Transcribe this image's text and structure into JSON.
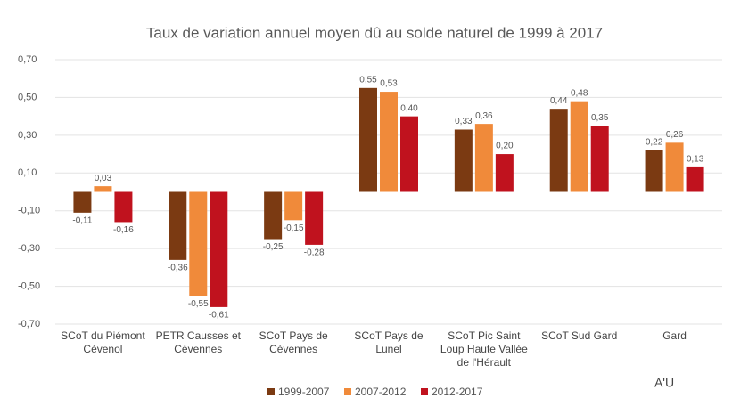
{
  "chart_data": {
    "type": "bar",
    "title": "Taux de variation annuel moyen dû au solde naturel de 1999 à 2017",
    "logo": "A'U",
    "categories": [
      "SCoT du Piémont Cévenol",
      "PETR Causses et Cévennes",
      "SCoT Pays de Cévennes",
      "SCoT Pays de Lunel",
      "SCoT Pic Saint Loup Haute Vallée de l'Hérault",
      "SCoT Sud Gard",
      "Gard"
    ],
    "series": [
      {
        "name": "1999-2007",
        "color": "#7b3a12",
        "values": [
          -0.11,
          -0.36,
          -0.25,
          0.55,
          0.33,
          0.44,
          0.22
        ],
        "value_labels": [
          "-0,11",
          "-0,36",
          "-0,25",
          "0,55",
          "0,33",
          "0,44",
          "0,22"
        ]
      },
      {
        "name": "2007-2012",
        "color": "#f08a3a",
        "values": [
          0.03,
          -0.55,
          -0.15,
          0.53,
          0.36,
          0.48,
          0.26
        ],
        "value_labels": [
          "0,03",
          "-0,55",
          "-0,15",
          "0,53",
          "0,36",
          "0,48",
          "0,26"
        ]
      },
      {
        "name": "2012-2017",
        "color": "#c0121e",
        "values": [
          -0.16,
          -0.61,
          -0.28,
          0.4,
          0.2,
          0.35,
          0.13
        ],
        "value_labels": [
          "-0,16",
          "-0,61",
          "-0,28",
          "0,40",
          "0,20",
          "0,35",
          "0,13"
        ]
      }
    ],
    "ylim": [
      -0.7,
      0.7
    ],
    "yticks": [
      {
        "value": 0.7,
        "label": "0,70"
      },
      {
        "value": 0.5,
        "label": "0,50"
      },
      {
        "value": 0.3,
        "label": "0,30"
      },
      {
        "value": 0.1,
        "label": "0,10"
      },
      {
        "value": -0.1,
        "label": "-0,10"
      },
      {
        "value": -0.3,
        "label": "-0,30"
      },
      {
        "value": -0.5,
        "label": "-0,50"
      },
      {
        "value": -0.7,
        "label": "-0,70"
      }
    ],
    "grid": true
  }
}
